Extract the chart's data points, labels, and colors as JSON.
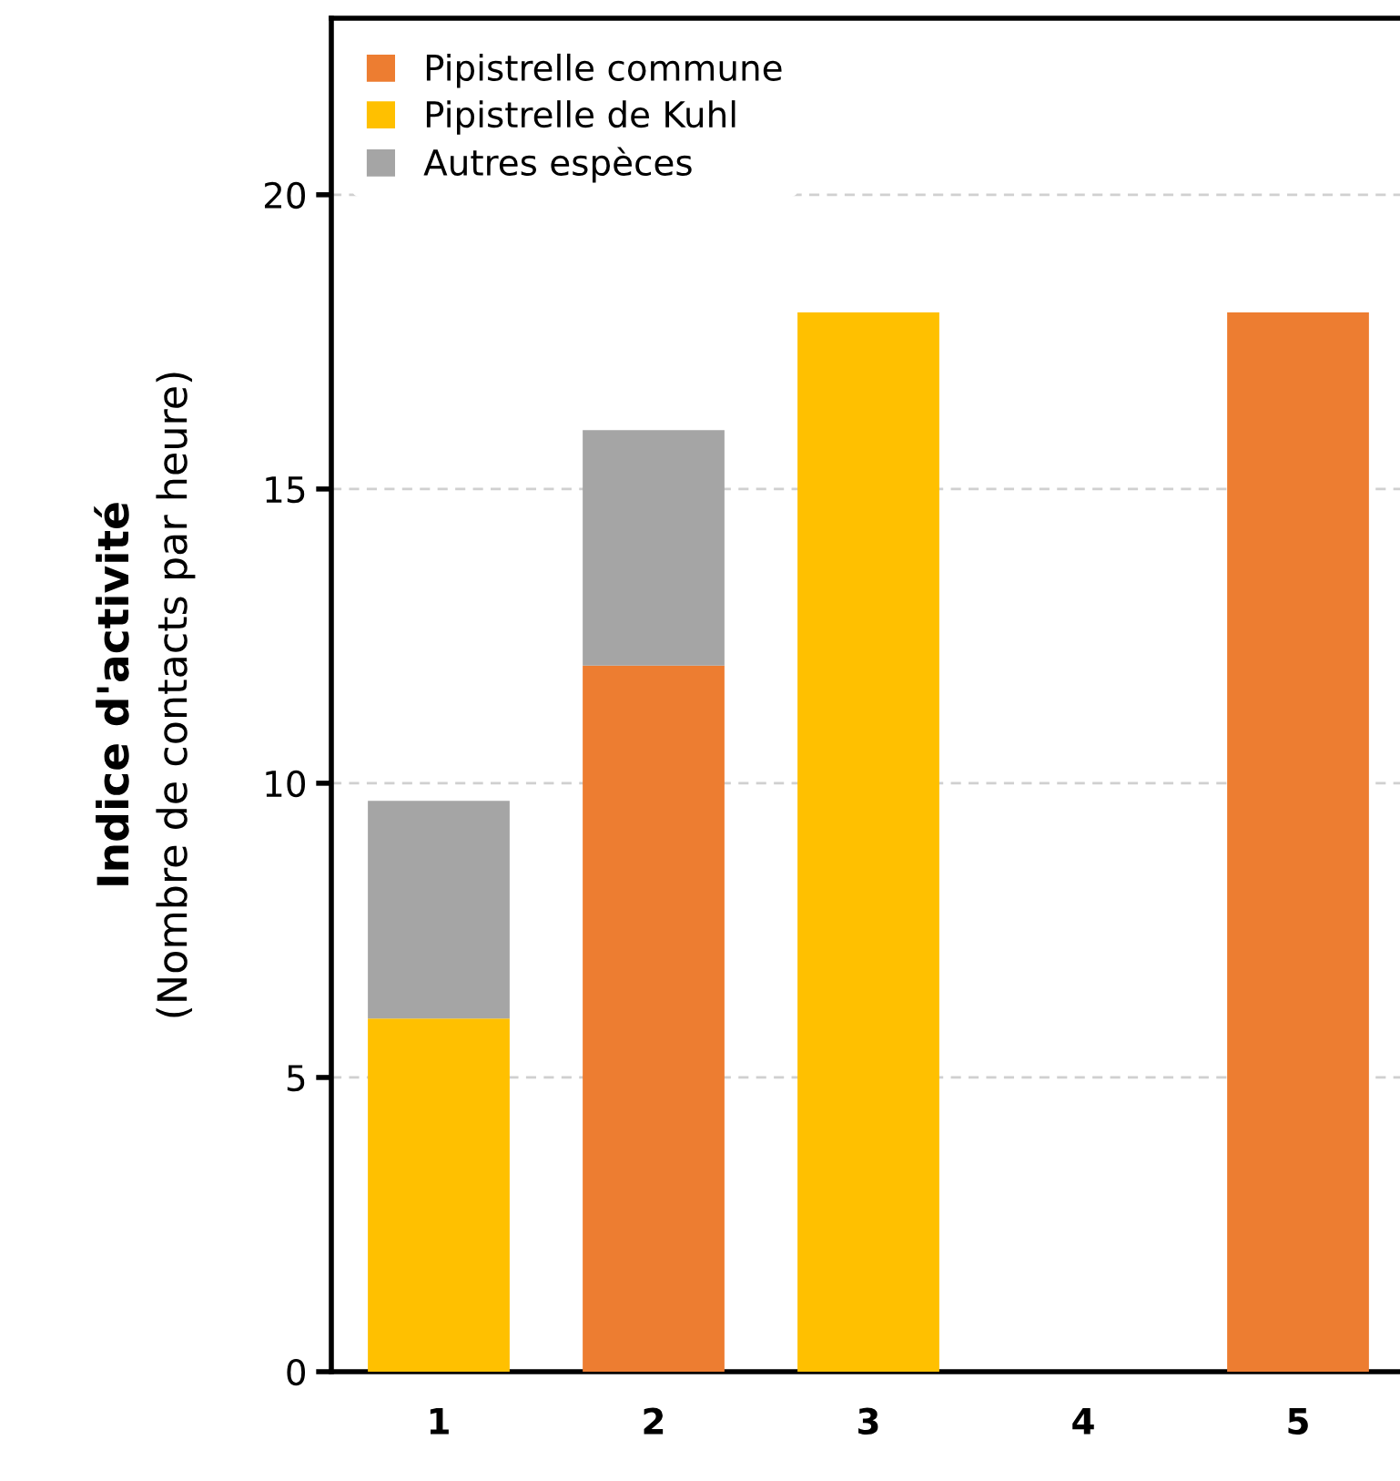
{
  "chart_data": {
    "type": "bar",
    "stacked": true,
    "ylabel": "Indice d'activité\n(Nombre de contacts par heure)",
    "categories": [
      "1",
      "2",
      "3",
      "4",
      "5"
    ],
    "series": [
      {
        "name": "Pipistrelle commune",
        "color": "#ed7d31",
        "values": [
          0,
          12,
          0,
          0,
          18
        ]
      },
      {
        "name": "Pipistrelle de Kuhl",
        "color": "#ffc000",
        "values": [
          6,
          0,
          18,
          0,
          0
        ]
      },
      {
        "name": "Autres espèces",
        "color": "#a5a5a5",
        "values": [
          3.7,
          4,
          0,
          0,
          0
        ]
      }
    ],
    "ylim": [
      0,
      23
    ],
    "yticks": [
      0,
      5,
      10,
      15,
      20
    ],
    "grid": "y",
    "legend": "top left"
  }
}
